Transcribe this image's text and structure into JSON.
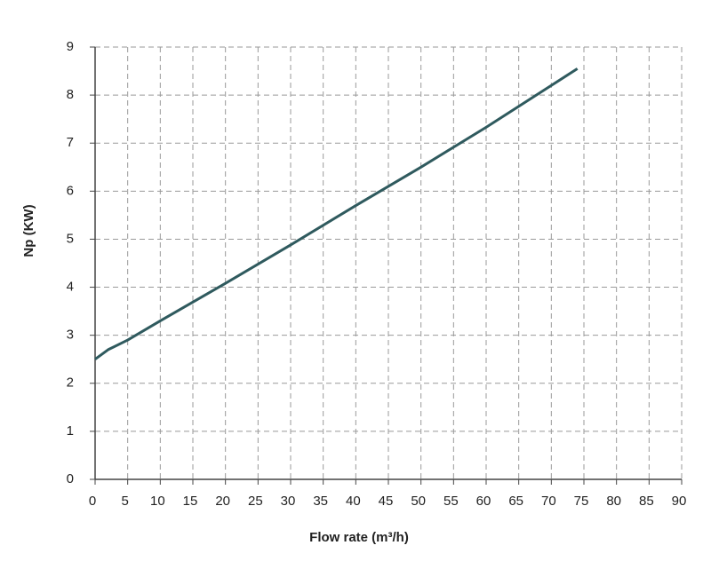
{
  "chart_data": {
    "type": "line",
    "xlabel": "Flow rate (m³/h)",
    "ylabel": "Np (KW)",
    "x": [
      0,
      1,
      2,
      5,
      10,
      20,
      30,
      40,
      50,
      60,
      70,
      74
    ],
    "values": [
      2.5,
      2.6,
      2.7,
      2.9,
      3.3,
      4.08,
      4.88,
      5.7,
      6.5,
      7.33,
      8.2,
      8.55
    ],
    "color": "#2f5a5e",
    "xlim": [
      0,
      90
    ],
    "xticks": [
      0,
      5,
      10,
      15,
      20,
      25,
      30,
      35,
      40,
      45,
      50,
      55,
      60,
      65,
      70,
      75,
      80,
      85,
      90
    ],
    "ylim": [
      0,
      9
    ],
    "yticks": [
      0,
      1,
      2,
      3,
      4,
      5,
      6,
      7,
      8,
      9
    ],
    "grid": true
  }
}
